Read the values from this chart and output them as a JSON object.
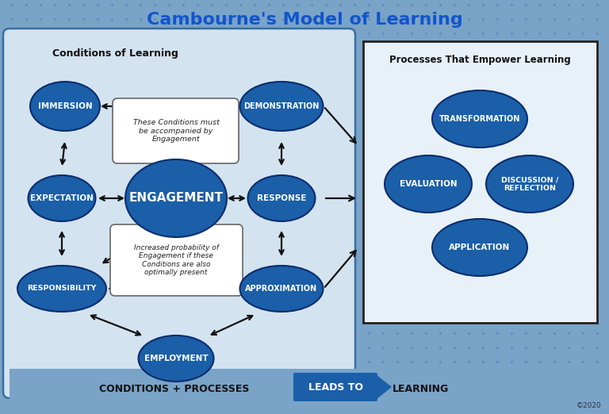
{
  "title": "Cambourne's Model of Learning",
  "title_color": "#1155cc",
  "title_fontsize": 16,
  "bg_outer": "#7aa3c8",
  "bg_left_panel": "#d4e3f0",
  "bg_right_panel": "#e8f0f8",
  "ellipse_color": "#1a5fa8",
  "ellipse_edge_color": "#0a2d6e",
  "ellipse_text_color": "#ffffff",
  "conditions_label": "Conditions of Learning",
  "processes_label": "Processes That Empower Learning",
  "footer_text1": "CONDITIONS + PROCESSES",
  "footer_text2": "LEADS TO",
  "footer_text3": "LEARNING",
  "copyright": "©2020",
  "note_top": "These Conditions must\nbe accompanied by\nEngagement",
  "note_bottom": "Increased probability of\nEngagement if these\nConditions are also\noptimally present"
}
